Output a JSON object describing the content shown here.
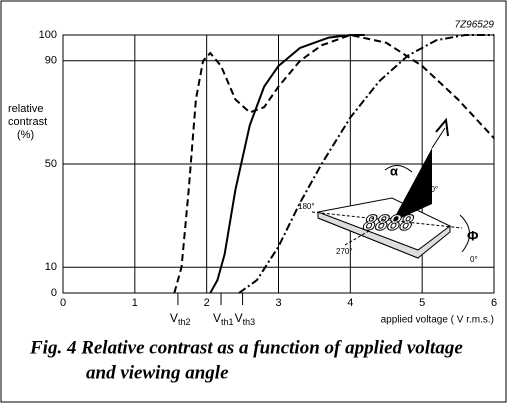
{
  "chart_data": {
    "type": "line",
    "code": "7Z96529",
    "ylabel_lines": [
      "relative",
      "contrast",
      "(%)"
    ],
    "xlabel": "applied voltage ( V r.m.s.)",
    "caption_lines": [
      "Fig. 4  Relative contrast as a function of applied voltage",
      "and viewing angle"
    ],
    "xlim": [
      0,
      6
    ],
    "xticks": [
      0,
      1,
      2,
      3,
      4,
      5,
      6
    ],
    "ylim": [
      0,
      100
    ],
    "yticks": [
      0,
      10,
      50,
      90,
      100
    ],
    "grid": true,
    "series": [
      {
        "style": "dashed",
        "color": "#000000",
        "x": [
          1.55,
          1.65,
          1.75,
          1.85,
          1.95,
          2.05,
          2.2,
          2.4,
          2.6,
          2.8,
          3.0,
          3.3,
          3.6,
          4.0,
          4.5,
          5.0,
          5.5,
          6.0
        ],
        "values": [
          0,
          10,
          40,
          75,
          90,
          93,
          88,
          75,
          70,
          72,
          80,
          90,
          96,
          100,
          97,
          88,
          75,
          60
        ]
      },
      {
        "style": "solid",
        "color": "#000000",
        "x": [
          2.05,
          2.15,
          2.25,
          2.4,
          2.6,
          2.8,
          3.0,
          3.3,
          3.7,
          4.0,
          4.2
        ],
        "values": [
          0,
          5,
          15,
          40,
          65,
          80,
          88,
          95,
          99,
          100,
          100
        ]
      },
      {
        "style": "dashdot",
        "color": "#000000",
        "x": [
          2.45,
          2.7,
          3.0,
          3.3,
          3.6,
          4.0,
          4.4,
          4.8,
          5.2,
          5.6,
          6.0
        ],
        "values": [
          0,
          5,
          18,
          35,
          50,
          68,
          82,
          92,
          98,
          100,
          100
        ]
      }
    ],
    "thresholds": [
      {
        "label": "V",
        "sub": "th2",
        "x": 1.6
      },
      {
        "label": "V",
        "sub": "th1",
        "x": 2.2
      },
      {
        "label": "V",
        "sub": "th3",
        "x": 2.5
      }
    ],
    "inset_labels": {
      "alpha": "α",
      "deg90": "90°",
      "deg180": "180°",
      "deg270": "270°",
      "deg0": "0°",
      "phi": "Φ",
      "digits": "8888"
    }
  }
}
